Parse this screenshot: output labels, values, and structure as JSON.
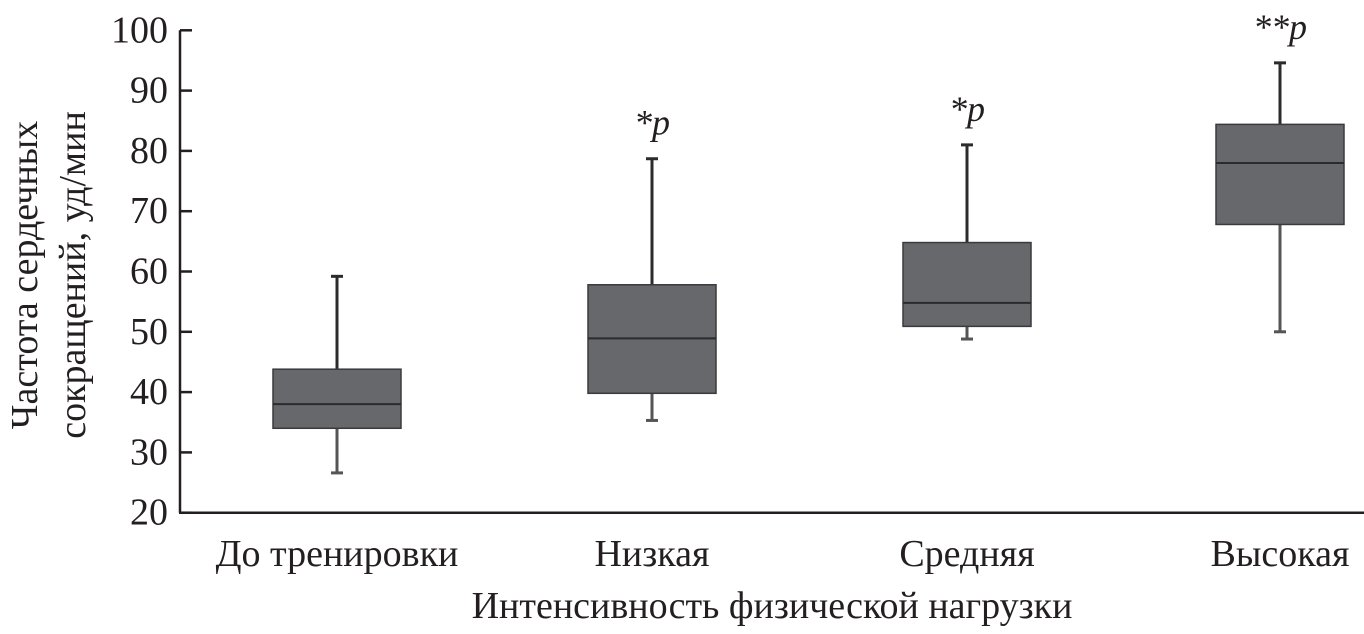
{
  "chart_data": {
    "type": "box",
    "title": "",
    "xlabel": "Интенсивность физической нагрузки",
    "ylabel_lines": [
      "Частота сердечных",
      "сокращений, уд/мин"
    ],
    "ylim": [
      20,
      100
    ],
    "yticks": [
      20,
      30,
      40,
      50,
      60,
      70,
      80,
      90,
      100
    ],
    "grid": false,
    "categories": [
      "До тренировки",
      "Низкая",
      "Средняя",
      "Высокая"
    ],
    "boxes": [
      {
        "min": 26.6,
        "q1": 34,
        "median": 38,
        "q3": 43.8,
        "max": 59.2,
        "annotation": ""
      },
      {
        "min": 35.3,
        "q1": 39.8,
        "median": 48.9,
        "q3": 57.8,
        "max": 78.7,
        "annotation": "*p"
      },
      {
        "min": 48.8,
        "q1": 50.9,
        "median": 54.8,
        "q3": 64.8,
        "max": 81,
        "annotation": "*p"
      },
      {
        "min": 50,
        "q1": 67.8,
        "median": 78,
        "q3": 84.4,
        "max": 94.6,
        "annotation": "**p"
      }
    ],
    "colors": {
      "box_fill": "#67686b",
      "line": "#2b2b2d",
      "axis": "#231f20"
    }
  }
}
